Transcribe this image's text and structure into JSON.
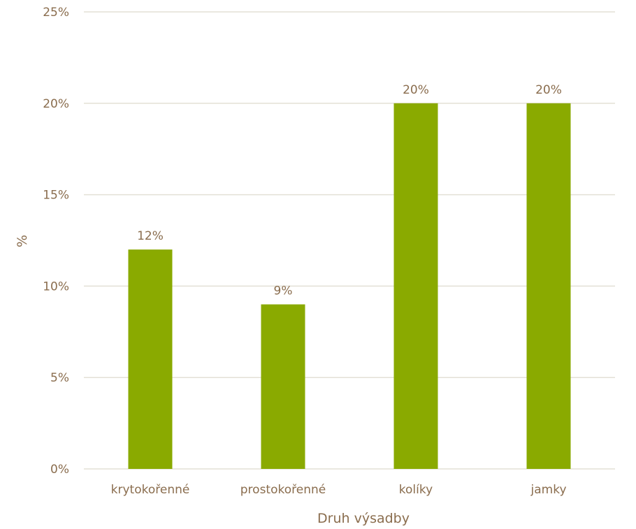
{
  "chart_data": {
    "type": "bar",
    "categories": [
      "krytokořenné",
      "prostokořenné",
      "kolíky",
      "jamky"
    ],
    "values": [
      12,
      9,
      20,
      20
    ],
    "value_labels": [
      "12%",
      "9%",
      "20%",
      "20%"
    ],
    "title": "",
    "xlabel": "Druh výsadby",
    "ylabel": "%",
    "ylim": [
      0,
      25
    ],
    "y_ticks": [
      0,
      5,
      10,
      15,
      20,
      25
    ],
    "y_tick_labels": [
      "0%",
      "5%",
      "10%",
      "15%",
      "20%",
      "25%"
    ],
    "grid": true,
    "legend": "none",
    "colors": {
      "bar": "#8aaa00",
      "text": "#8a6d4e",
      "grid": "#e3e0d6"
    }
  }
}
